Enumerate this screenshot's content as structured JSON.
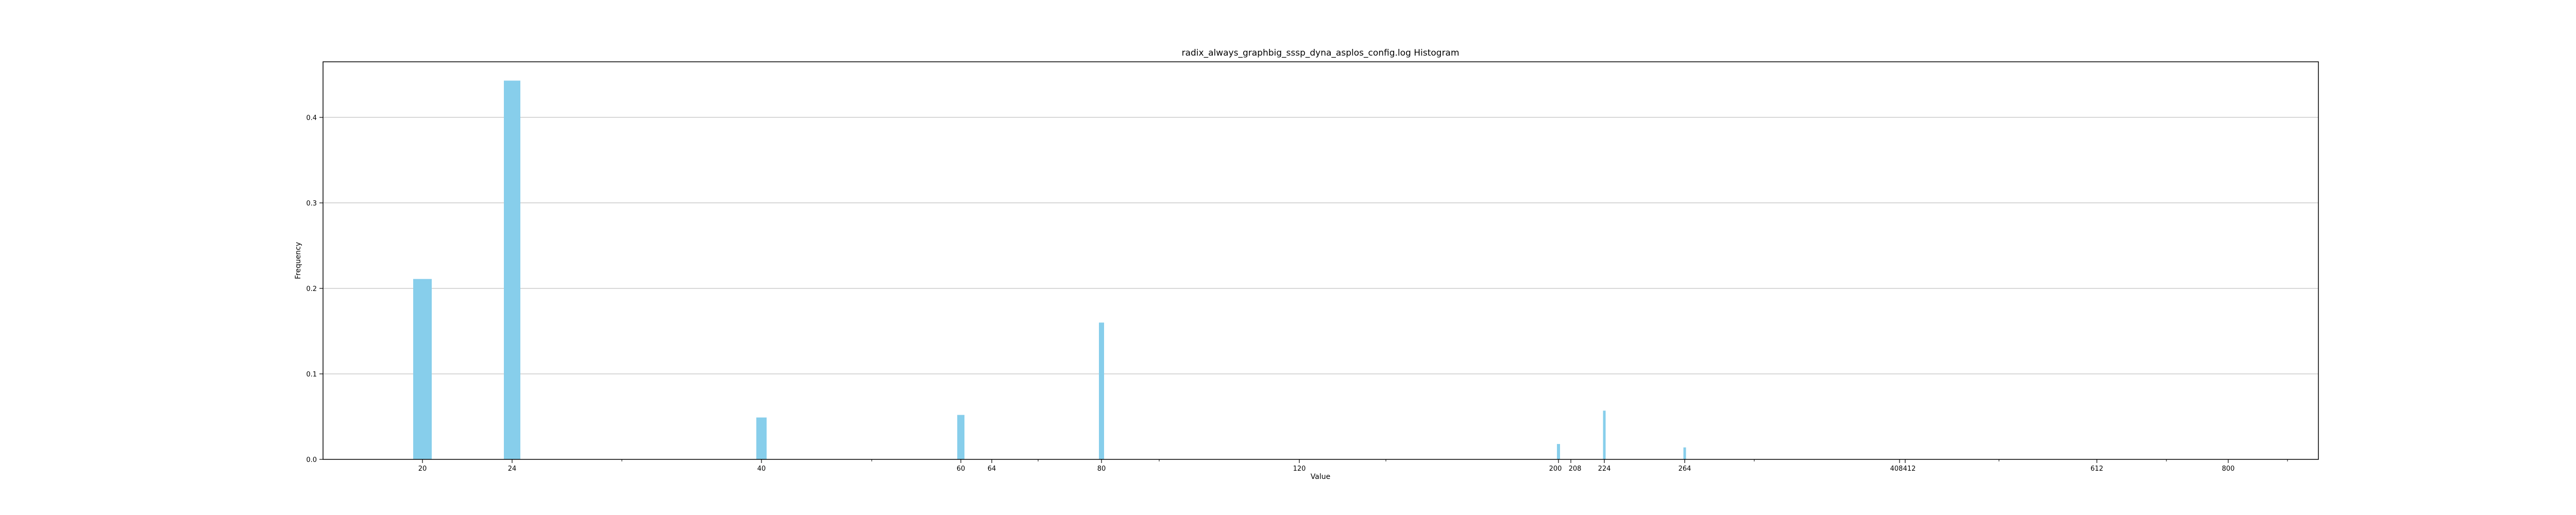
{
  "chart_data": {
    "type": "bar",
    "title": "radix_always_graphbig_sssp_dyna_asplos_config.log Histogram",
    "xlabel": "Value",
    "ylabel": "Frequency",
    "x_tick_labels": [
      "20",
      "24",
      "40",
      "60",
      "64",
      "80",
      "120",
      "200",
      "208",
      "224",
      "264",
      "408",
      "412",
      "612",
      "800"
    ],
    "yticks": [
      0.0,
      0.1,
      0.2,
      0.3,
      0.4
    ],
    "ylim": [
      0,
      0.465
    ],
    "grid": "horizontal",
    "bar_color": "#87CEEB",
    "bars": [
      {
        "label": "20",
        "value": 0.211
      },
      {
        "label": "24",
        "value": 0.443
      },
      {
        "label": "40",
        "value": 0.049
      },
      {
        "label": "60",
        "value": 0.052
      },
      {
        "label": "80",
        "value": 0.16
      },
      {
        "label": "200",
        "value": 0.018
      },
      {
        "label": "224",
        "value": 0.057
      },
      {
        "label": "264",
        "value": 0.014
      }
    ]
  }
}
